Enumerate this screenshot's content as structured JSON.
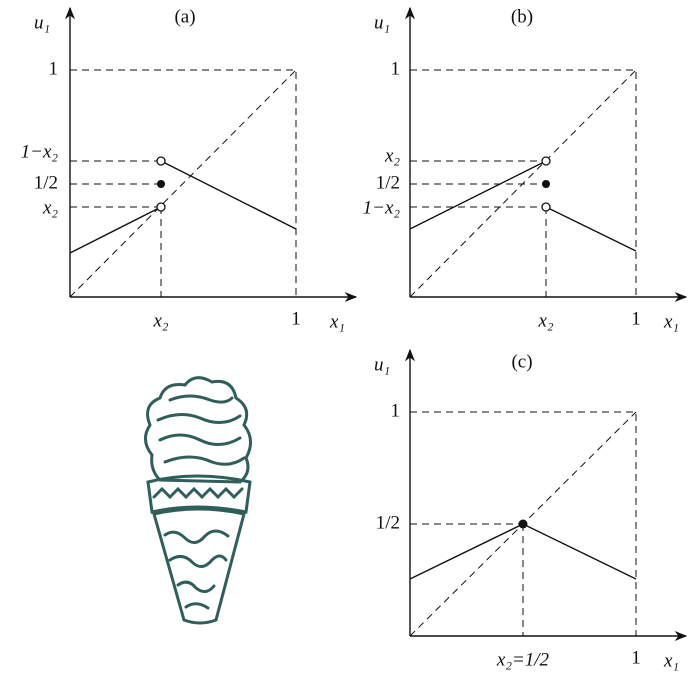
{
  "panels": [
    {
      "label": "(a)",
      "y_axis": "u₁",
      "x_axis": "x₁",
      "y_ticks": [
        "1",
        "1−x₂",
        "1/2",
        "x₂"
      ],
      "x_ticks": [
        "x₂",
        "1"
      ]
    },
    {
      "label": "(b)",
      "y_axis": "u₁",
      "x_axis": "x₁",
      "y_ticks": [
        "1",
        "x₂",
        "1/2",
        "1−x₂"
      ],
      "x_ticks": [
        "x₂",
        "1"
      ]
    },
    {
      "label": "(c)",
      "y_axis": "u₁",
      "x_axis": "x₁",
      "y_ticks": [
        "1",
        "1/2"
      ],
      "x_ticks": [
        "x₂=1/2",
        "1"
      ]
    }
  ]
}
